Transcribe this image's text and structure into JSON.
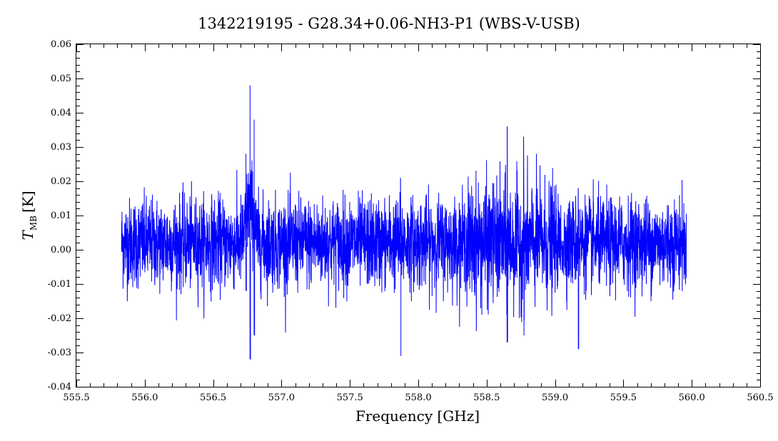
{
  "chart_data": {
    "type": "line",
    "title": "1342219195 - G28.34+0.06-NH3-P1 (WBS-V-USB)",
    "xlabel": "Frequency [GHz]",
    "ylabel": {
      "symbol": "T",
      "subscript": "MB",
      "unit": "[K]"
    },
    "xlim": [
      555.5,
      560.5
    ],
    "ylim": [
      -0.04,
      0.06
    ],
    "x_ticks": [
      {
        "value": 555.5,
        "label": "555.5"
      },
      {
        "value": 556.0,
        "label": "556.0"
      },
      {
        "value": 556.5,
        "label": "556.5"
      },
      {
        "value": 557.0,
        "label": "557.0"
      },
      {
        "value": 557.5,
        "label": "557.5"
      },
      {
        "value": 558.0,
        "label": "558.0"
      },
      {
        "value": 558.5,
        "label": "558.5"
      },
      {
        "value": 559.0,
        "label": "559.0"
      },
      {
        "value": 559.5,
        "label": "559.5"
      },
      {
        "value": 560.0,
        "label": "560.0"
      },
      {
        "value": 560.5,
        "label": "560.5"
      }
    ],
    "y_ticks": [
      {
        "value": -0.04,
        "label": "-0.04"
      },
      {
        "value": -0.03,
        "label": "-0.03"
      },
      {
        "value": -0.02,
        "label": "-0.02"
      },
      {
        "value": -0.01,
        "label": "-0.01"
      },
      {
        "value": 0.0,
        "label": "0.00"
      },
      {
        "value": 0.01,
        "label": "0.01"
      },
      {
        "value": 0.02,
        "label": "0.02"
      },
      {
        "value": 0.03,
        "label": "0.03"
      },
      {
        "value": 0.04,
        "label": "0.04"
      },
      {
        "value": 0.05,
        "label": "0.05"
      },
      {
        "value": 0.06,
        "label": "0.06"
      }
    ],
    "grid": false,
    "series": [
      {
        "color": "#0000ff",
        "x_range": [
          555.83,
          559.96
        ],
        "baseline": 0.002,
        "noise_rms": 0.0065,
        "features": [
          {
            "x": 556.77,
            "peak": 0.048,
            "trough": -0.032
          },
          {
            "x": 556.8,
            "peak": 0.038,
            "trough": -0.025
          },
          {
            "x": 556.74,
            "peak": 0.028,
            "trough": -0.012
          },
          {
            "x": 557.87,
            "peak": 0.021,
            "trough": -0.031
          },
          {
            "x": 558.65,
            "peak": 0.036,
            "trough": -0.027
          },
          {
            "x": 558.77,
            "peak": 0.033,
            "trough": -0.025
          },
          {
            "x": 559.17,
            "peak": 0.018,
            "trough": -0.029
          }
        ]
      }
    ]
  }
}
